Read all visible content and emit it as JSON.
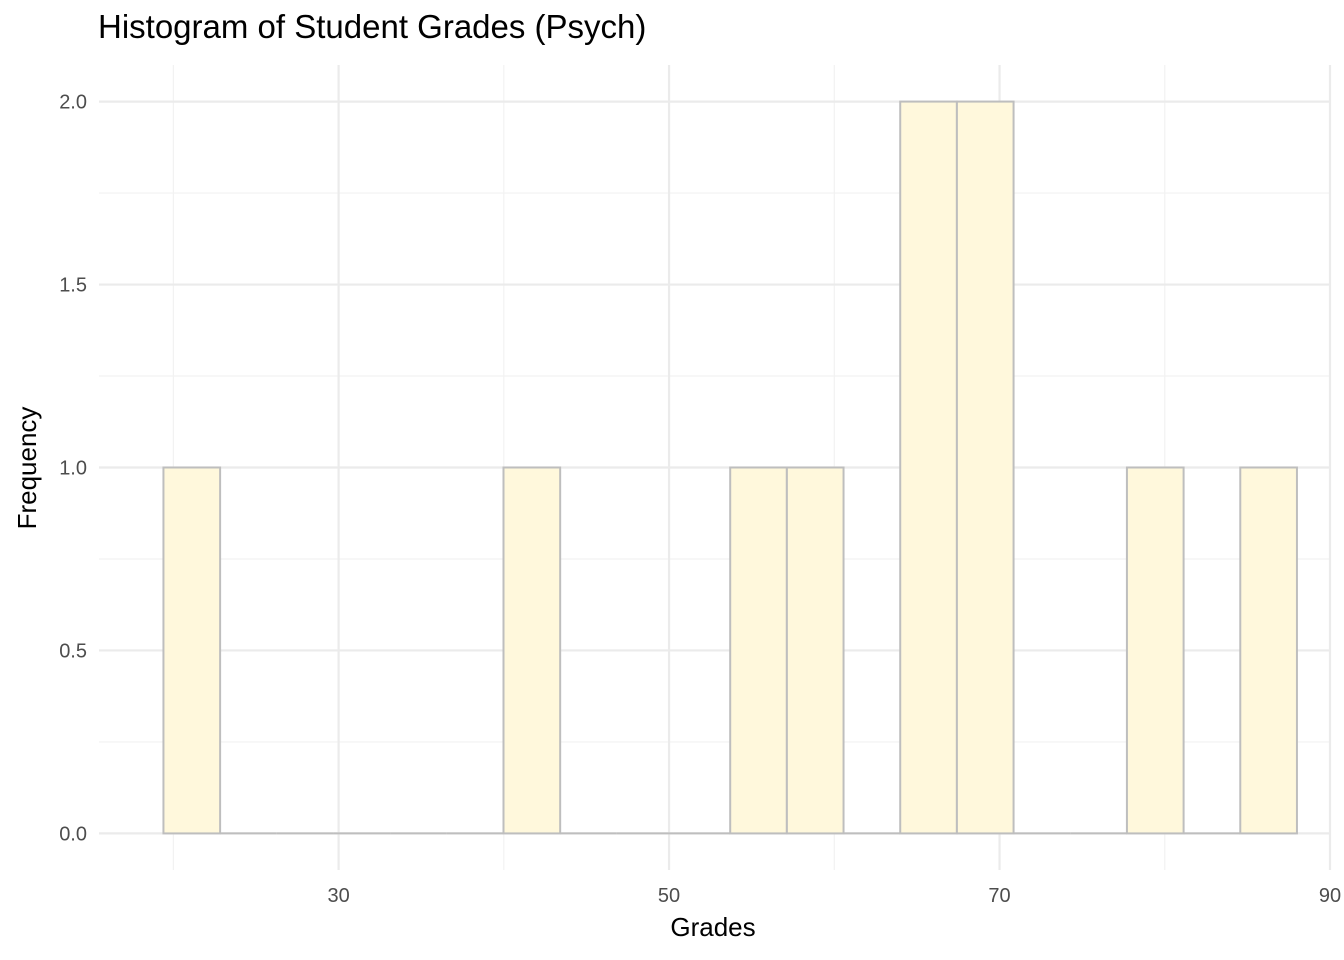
{
  "chart_data": {
    "type": "bar",
    "title": "Histogram of Student Grades (Psych)",
    "xlabel": "Grades",
    "ylabel": "Frequency",
    "xlim": [
      15.5,
      90.0
    ],
    "ylim": [
      -0.1,
      2.1
    ],
    "x_ticks": [
      30,
      50,
      70,
      90
    ],
    "x_tick_labels": [
      "30",
      "50",
      "70",
      "90"
    ],
    "y_ticks": [
      0.0,
      0.5,
      1.0,
      1.5,
      2.0
    ],
    "y_tick_labels": [
      "0.0",
      "0.5",
      "1.0",
      "1.5",
      "2.0"
    ],
    "bin_width": 3.43,
    "bins": [
      {
        "start": 19.4,
        "count": 1
      },
      {
        "start": 22.83,
        "count": 0
      },
      {
        "start": 26.26,
        "count": 0
      },
      {
        "start": 29.69,
        "count": 0
      },
      {
        "start": 33.12,
        "count": 0
      },
      {
        "start": 36.55,
        "count": 0
      },
      {
        "start": 39.98,
        "count": 1
      },
      {
        "start": 43.41,
        "count": 0
      },
      {
        "start": 46.84,
        "count": 0
      },
      {
        "start": 50.27,
        "count": 0
      },
      {
        "start": 53.7,
        "count": 1
      },
      {
        "start": 57.13,
        "count": 1
      },
      {
        "start": 60.56,
        "count": 0
      },
      {
        "start": 63.99,
        "count": 2
      },
      {
        "start": 67.42,
        "count": 2
      },
      {
        "start": 70.85,
        "count": 0
      },
      {
        "start": 74.28,
        "count": 0
      },
      {
        "start": 77.71,
        "count": 1
      },
      {
        "start": 81.14,
        "count": 0
      },
      {
        "start": 84.57,
        "count": 1
      }
    ],
    "grid": true,
    "legend": "none",
    "colors": {
      "bar_fill": "#fff8dc",
      "bar_stroke": "#bebebe",
      "grid_major": "#ebebeb",
      "grid_minor": "#f2f2f2"
    }
  }
}
